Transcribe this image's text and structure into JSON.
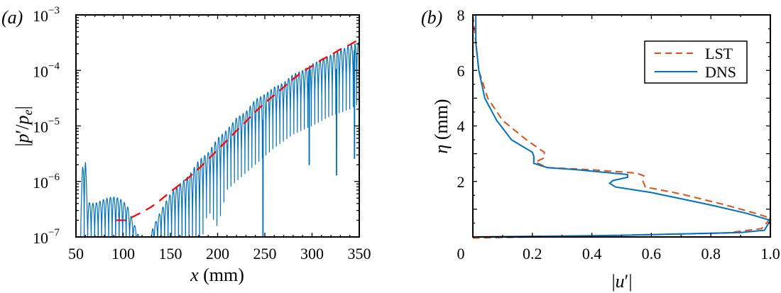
{
  "chart_data": [
    {
      "panel_label": "(a)",
      "type": "line",
      "xlabel": "x (mm)",
      "ylabel": "|p′/p_e|",
      "xlim": [
        50,
        350
      ],
      "ylim": [
        1e-07,
        0.001
      ],
      "yscale": "log",
      "grid": false,
      "xticks": [
        "50",
        "100",
        "150",
        "200",
        "250",
        "300",
        "350"
      ],
      "yticks": [
        {
          "base": "10",
          "exp": "−7"
        },
        {
          "base": "10",
          "exp": "−6"
        },
        {
          "base": "10",
          "exp": "−5"
        },
        {
          "base": "10",
          "exp": "−4"
        },
        {
          "base": "10",
          "exp": "−3"
        }
      ],
      "series": [
        {
          "style": "solid",
          "color": "#0072bd",
          "oscillation_period_mm": 3.7,
          "x_start": 55,
          "x_end": 350,
          "peak_envelope": [
            [
              55,
              4e-07
            ],
            [
              57,
              1.8e-06
            ],
            [
              58.5,
              2.8e-06
            ],
            [
              60,
              2.6e-06
            ],
            [
              62,
              4.2e-07
            ],
            [
              70,
              4e-07
            ],
            [
              80,
              4.8e-07
            ],
            [
              88,
              5.3e-07
            ],
            [
              96,
              5e-07
            ],
            [
              104,
              3.8e-07
            ],
            [
              110,
              2e-07
            ],
            [
              116,
              1.1e-07
            ],
            [
              120,
              6e-08
            ],
            [
              128,
              6e-08
            ],
            [
              131,
              1.4e-07
            ],
            [
              140,
              3e-07
            ],
            [
              150,
              6e-07
            ],
            [
              160,
              9e-07
            ],
            [
              170,
              1.3e-06
            ],
            [
              180,
              2.4e-06
            ],
            [
              190,
              3.3e-06
            ],
            [
              200,
              6e-06
            ],
            [
              210,
              8.5e-06
            ],
            [
              220,
              1.4e-05
            ],
            [
              230,
              1.8e-05
            ],
            [
              240,
              3e-05
            ],
            [
              250,
              3.7e-05
            ],
            [
              260,
              5e-05
            ],
            [
              270,
              6e-05
            ],
            [
              280,
              8.5e-05
            ],
            [
              290,
              0.0001
            ],
            [
              300,
              0.00013
            ],
            [
              320,
              0.00019
            ],
            [
              340,
              0.00028
            ],
            [
              350,
              0.00032
            ]
          ],
          "trough_envelope": [
            [
              55,
              5e-08
            ],
            [
              180,
              5e-08
            ],
            [
              190,
              3e-07
            ],
            [
              200,
              1.5e-07
            ],
            [
              210,
              7e-07
            ],
            [
              220,
              1e-06
            ],
            [
              240,
              2e-06
            ],
            [
              260,
              4e-06
            ],
            [
              280,
              7e-06
            ],
            [
              300,
              1e-05
            ],
            [
              320,
              1.5e-05
            ],
            [
              340,
              2e-05
            ],
            [
              350,
              2.5e-05
            ]
          ],
          "deep_dips": [
            [
              248,
              5e-08
            ],
            [
              326,
              1.3e-06
            ],
            [
              345,
              2.6e-06
            ],
            [
              297,
              2e-06
            ]
          ]
        },
        {
          "style": "dashed",
          "color": "#ff0000",
          "points": [
            [
              92,
              2e-07
            ],
            [
              103,
              2e-07
            ],
            [
              110,
              2.3e-07
            ],
            [
              120,
              2.8e-07
            ],
            [
              130,
              3.5e-07
            ],
            [
              140,
              4.7e-07
            ],
            [
              150,
              6.5e-07
            ],
            [
              160,
              8.8e-07
            ],
            [
              170,
              1.2e-06
            ],
            [
              180,
              1.7e-06
            ],
            [
              190,
              2.5e-06
            ],
            [
              200,
              3.7e-06
            ],
            [
              210,
              5.5e-06
            ],
            [
              220,
              8.2e-06
            ],
            [
              230,
              1.2e-05
            ],
            [
              240,
              1.8e-05
            ],
            [
              250,
              2.6e-05
            ],
            [
              260,
              3.6e-05
            ],
            [
              270,
              5e-05
            ],
            [
              280,
              7e-05
            ],
            [
              290,
              9.5e-05
            ],
            [
              300,
              0.00012
            ],
            [
              310,
              0.000155
            ],
            [
              320,
              0.00019
            ],
            [
              330,
              0.00024
            ],
            [
              340,
              0.00029
            ],
            [
              347,
              0.00034
            ]
          ]
        }
      ]
    },
    {
      "panel_label": "(b)",
      "type": "line",
      "xlabel": "|u′|",
      "ylabel": "η (mm)",
      "xlim": [
        0,
        1.0
      ],
      "ylim": [
        0,
        8
      ],
      "grid": false,
      "legend_position": "top-right",
      "xticks": [
        "0",
        "0.2",
        "0.4",
        "0.6",
        "0.8",
        "1.0"
      ],
      "yticks": [
        "2",
        "4",
        "6",
        "8"
      ],
      "series": [
        {
          "name": "LST",
          "style": "dashed",
          "color": "#d95319",
          "points": [
            [
              0.0,
              8
            ],
            [
              0.01,
              7
            ],
            [
              0.02,
              6
            ],
            [
              0.05,
              5
            ],
            [
              0.1,
              4.2
            ],
            [
              0.18,
              3.5
            ],
            [
              0.24,
              3.05
            ],
            [
              0.24,
              2.85
            ],
            [
              0.21,
              2.7
            ],
            [
              0.25,
              2.5
            ],
            [
              0.4,
              2.42
            ],
            [
              0.55,
              2.3
            ],
            [
              0.575,
              2.2
            ],
            [
              0.57,
              2.05
            ],
            [
              0.58,
              1.8
            ],
            [
              0.7,
              1.55
            ],
            [
              0.85,
              1.15
            ],
            [
              0.95,
              0.85
            ],
            [
              1.0,
              0.68
            ],
            [
              0.98,
              0.4
            ],
            [
              0.97,
              0.3
            ],
            [
              0.85,
              0.14
            ],
            [
              0.4,
              0.04
            ],
            [
              0.0,
              -0.04
            ]
          ]
        },
        {
          "name": "DNS",
          "style": "solid",
          "color": "#0072bd",
          "points": [
            [
              0.01,
              8
            ],
            [
              0.01,
              7
            ],
            [
              0.02,
              6
            ],
            [
              0.04,
              5
            ],
            [
              0.08,
              4.2
            ],
            [
              0.13,
              3.5
            ],
            [
              0.2,
              3.05
            ],
            [
              0.205,
              2.9
            ],
            [
              0.205,
              2.65
            ],
            [
              0.25,
              2.5
            ],
            [
              0.35,
              2.42
            ],
            [
              0.52,
              2.25
            ],
            [
              0.52,
              2.15
            ],
            [
              0.47,
              2.03
            ],
            [
              0.46,
              1.93
            ],
            [
              0.48,
              1.8
            ],
            [
              0.6,
              1.6
            ],
            [
              0.8,
              1.15
            ],
            [
              0.92,
              0.85
            ],
            [
              1.0,
              0.6
            ],
            [
              0.985,
              0.33
            ],
            [
              0.98,
              0.24
            ],
            [
              0.9,
              0.16
            ],
            [
              0.5,
              0.06
            ],
            [
              0.0,
              0.0
            ]
          ]
        }
      ]
    }
  ]
}
